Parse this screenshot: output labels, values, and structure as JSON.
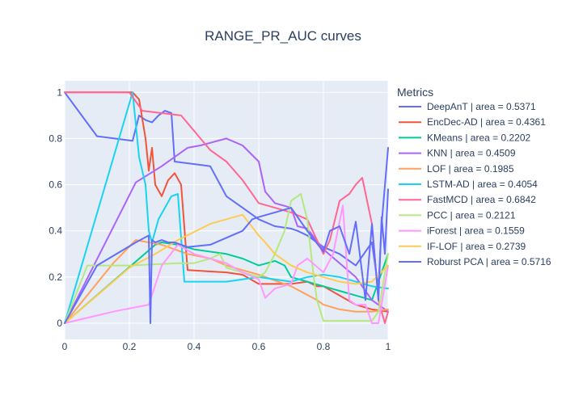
{
  "chart_data": {
    "type": "line",
    "title": "RANGE_PR_AUC curves",
    "xlabel": "",
    "ylabel": "",
    "xlim": [
      0,
      1
    ],
    "ylim": [
      -0.07,
      1.05
    ],
    "x_ticks": [
      0,
      0.2,
      0.4,
      0.6,
      0.8,
      1
    ],
    "x_tick_labels": [
      "0",
      "0.2",
      "0.4",
      "0.6",
      "0.8",
      "1"
    ],
    "y_ticks": [
      0,
      0.2,
      0.4,
      0.6,
      0.8,
      1
    ],
    "y_tick_labels": [
      "0",
      "0.2",
      "0.4",
      "0.6",
      "0.8",
      "1"
    ],
    "grid": true,
    "legend": {
      "title": "Metrics",
      "position": "right"
    },
    "series": [
      {
        "name": "DeepAnT | area = 0.5371",
        "color": "#636efa",
        "x": [
          0,
          0.1,
          0.21,
          0.23,
          0.25,
          0.27,
          0.29,
          0.31,
          0.33,
          0.34,
          0.45,
          0.5,
          0.55,
          0.6,
          0.65,
          0.7,
          0.72,
          0.75,
          0.78,
          0.8,
          0.85,
          0.9,
          0.95,
          0.97,
          0.98,
          1
        ],
        "y": [
          1,
          0.81,
          0.79,
          0.9,
          0.88,
          0.87,
          0.9,
          0.92,
          0.91,
          0.7,
          0.68,
          0.55,
          0.5,
          0.45,
          0.42,
          0.41,
          0.4,
          0.38,
          0.35,
          0.33,
          0.3,
          0.25,
          0.35,
          0.15,
          0.43,
          0.76
        ]
      },
      {
        "name": "EncDec-AD | area = 0.4361",
        "color": "#EF553B",
        "x": [
          0,
          0.21,
          0.23,
          0.25,
          0.26,
          0.27,
          0.28,
          0.3,
          0.32,
          0.34,
          0.36,
          0.38,
          0.5,
          0.55,
          0.6,
          0.7,
          0.75,
          0.78,
          0.8,
          0.85,
          0.9,
          0.95,
          1
        ],
        "y": [
          1,
          1,
          0.97,
          0.8,
          0.66,
          0.76,
          0.6,
          0.55,
          0.62,
          0.65,
          0.6,
          0.23,
          0.22,
          0.21,
          0.17,
          0.17,
          0.18,
          0.16,
          0.16,
          0.12,
          0.08,
          0.06,
          0.05
        ]
      },
      {
        "name": "KMeans | area = 0.2202",
        "color": "#00cc96",
        "x": [
          0,
          0.28,
          0.3,
          0.35,
          0.4,
          0.5,
          0.55,
          0.6,
          0.65,
          0.68,
          0.7,
          0.75,
          0.8,
          0.85,
          0.9,
          0.95,
          1
        ],
        "y": [
          0,
          0.34,
          0.35,
          0.34,
          0.32,
          0.3,
          0.28,
          0.25,
          0.27,
          0.25,
          0.2,
          0.18,
          0.16,
          0.14,
          0.12,
          0.1,
          0.3
        ]
      },
      {
        "name": "KNN | area = 0.4509",
        "color": "#ab63fa",
        "x": [
          0,
          0.22,
          0.3,
          0.38,
          0.42,
          0.5,
          0.55,
          0.6,
          0.62,
          0.65,
          0.7,
          0.72,
          0.75,
          0.8,
          0.85,
          0.9,
          0.95,
          1
        ],
        "y": [
          0,
          0.61,
          0.68,
          0.76,
          0.77,
          0.8,
          0.77,
          0.7,
          0.57,
          0.52,
          0.5,
          0.42,
          0.41,
          0.32,
          0.26,
          0.2,
          0.1,
          0.05
        ]
      },
      {
        "name": "LOF | area = 0.1985",
        "color": "#FFA15A",
        "x": [
          0,
          0.15,
          0.22,
          0.3,
          0.38,
          0.45,
          0.5,
          0.55,
          0.6,
          0.7,
          0.78,
          0.8,
          0.85,
          0.9,
          0.95,
          1
        ],
        "y": [
          0,
          0.26,
          0.36,
          0.34,
          0.3,
          0.28,
          0.25,
          0.23,
          0.21,
          0.16,
          0.1,
          0.08,
          0.06,
          0.05,
          0.05,
          0.06
        ]
      },
      {
        "name": "LSTM-AD | area = 0.4054",
        "color": "#19d3f3",
        "x": [
          0,
          0.21,
          0.23,
          0.25,
          0.26,
          0.27,
          0.29,
          0.31,
          0.33,
          0.35,
          0.37,
          0.4,
          0.5,
          0.6,
          0.7,
          0.75,
          0.8,
          0.85,
          0.9,
          0.95,
          1
        ],
        "y": [
          0,
          1,
          0.72,
          0.6,
          0.4,
          0.35,
          0.45,
          0.5,
          0.55,
          0.56,
          0.18,
          0.18,
          0.18,
          0.2,
          0.18,
          0.2,
          0.21,
          0.2,
          0.18,
          0.16,
          0.15
        ]
      },
      {
        "name": "FastMCD | area = 0.6842",
        "color": "#FF6692",
        "x": [
          0,
          0.1,
          0.2,
          0.24,
          0.3,
          0.36,
          0.45,
          0.5,
          0.55,
          0.6,
          0.65,
          0.7,
          0.75,
          0.8,
          0.82,
          0.85,
          0.88,
          0.9,
          0.92,
          0.95,
          0.97,
          0.99,
          1
        ],
        "y": [
          1,
          1,
          1,
          0.92,
          0.91,
          0.9,
          0.75,
          0.7,
          0.62,
          0.52,
          0.5,
          0.48,
          0.45,
          0.3,
          0.36,
          0.53,
          0.56,
          0.6,
          0.63,
          0.43,
          0.1,
          0.0,
          0.05
        ]
      },
      {
        "name": "PCC | area = 0.2121",
        "color": "#B6E880",
        "x": [
          0,
          0.07,
          0.2,
          0.35,
          0.4,
          0.45,
          0.48,
          0.5,
          0.55,
          0.6,
          0.62,
          0.65,
          0.68,
          0.7,
          0.73,
          0.75,
          0.77,
          0.78,
          0.8,
          0.85,
          0.9,
          0.95,
          0.97,
          1
        ],
        "y": [
          0,
          0.25,
          0.25,
          0.26,
          0.26,
          0.28,
          0.3,
          0.24,
          0.22,
          0.2,
          0.22,
          0.3,
          0.4,
          0.53,
          0.56,
          0.45,
          0.2,
          0.1,
          0.01,
          0.01,
          0.01,
          0.01,
          0.05,
          0.3
        ]
      },
      {
        "name": "iForest | area = 0.1559",
        "color": "#FF97FF",
        "x": [
          0,
          0.15,
          0.26,
          0.3,
          0.35,
          0.4,
          0.45,
          0.5,
          0.55,
          0.6,
          0.62,
          0.65,
          0.7,
          0.72,
          0.75,
          0.8,
          0.83,
          0.86,
          0.88,
          0.9,
          0.93,
          0.95,
          0.97,
          1
        ],
        "y": [
          0,
          0.05,
          0.08,
          0.25,
          0.34,
          0.3,
          0.28,
          0.26,
          0.22,
          0.19,
          0.11,
          0.15,
          0.17,
          0.25,
          0.28,
          0.22,
          0.3,
          0.51,
          0.1,
          0.08,
          0.08,
          0.0,
          0.0,
          0.25
        ]
      },
      {
        "name": "IF-LOF | area = 0.2739",
        "color": "#FECB52",
        "x": [
          0,
          0.2,
          0.28,
          0.35,
          0.45,
          0.55,
          0.6,
          0.62,
          0.65,
          0.7,
          0.75,
          0.8,
          0.85,
          0.9,
          0.95,
          1
        ],
        "y": [
          0,
          0.24,
          0.3,
          0.36,
          0.43,
          0.47,
          0.38,
          0.35,
          0.3,
          0.25,
          0.22,
          0.2,
          0.18,
          0.17,
          0.18,
          0.25
        ]
      },
      {
        "name": "Roburst PCA | area = 0.5716",
        "color": "#636efa",
        "x": [
          0,
          0.1,
          0.22,
          0.26,
          0.265,
          0.27,
          0.28,
          0.3,
          0.32,
          0.34,
          0.36,
          0.38,
          0.45,
          0.5,
          0.55,
          0.58,
          0.6,
          0.65,
          0.7,
          0.75,
          0.8,
          0.82,
          0.85,
          0.88,
          0.9,
          0.93,
          0.95,
          0.97,
          0.98,
          0.99,
          1
        ],
        "y": [
          0,
          0.25,
          0.35,
          0.38,
          0.0,
          0.36,
          0.35,
          0.36,
          0.35,
          0.35,
          0.34,
          0.33,
          0.34,
          0.37,
          0.4,
          0.45,
          0.46,
          0.48,
          0.5,
          0.4,
          0.31,
          0.4,
          0.42,
          0.3,
          0.44,
          0.1,
          0.43,
          0.1,
          0.46,
          0.3,
          0.58
        ]
      }
    ]
  }
}
